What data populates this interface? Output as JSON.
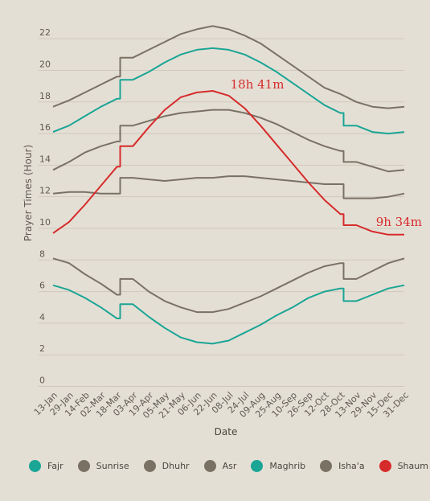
{
  "chart_data": {
    "type": "line",
    "title": "",
    "xlabel": "Date",
    "ylabel": "Prayer Times (Hour)",
    "ylim": [
      0,
      23
    ],
    "yticks": [
      0,
      2,
      4,
      6,
      8,
      10,
      12,
      14,
      16,
      18,
      20,
      22
    ],
    "x": [
      "13-Jan",
      "29-Jan",
      "14-Feb",
      "02-Mar",
      "18-Mar",
      "03-Apr",
      "19-Apr",
      "05-May",
      "21-May",
      "06-Jun",
      "22-Jun",
      "08-Jul",
      "24-Jul",
      "09-Aug",
      "25-Aug",
      "10-Sep",
      "26-Sep",
      "12-Oct",
      "28-Oct",
      "13-Nov",
      "29-Nov",
      "15-Dec",
      "31-Dec"
    ],
    "series": [
      {
        "name": "Fajr",
        "color": "#1aa595",
        "values": [
          6.4,
          6.1,
          5.6,
          5.0,
          4.3,
          5.2,
          4.4,
          3.7,
          3.1,
          2.8,
          2.7,
          2.9,
          3.4,
          3.9,
          4.5,
          5.0,
          5.6,
          6.0,
          6.2,
          5.4,
          5.8,
          6.2,
          6.4
        ]
      },
      {
        "name": "Sunrise",
        "color": "#7a7165",
        "values": [
          8.1,
          7.8,
          7.1,
          6.5,
          5.8,
          6.8,
          6.0,
          5.4,
          5.0,
          4.7,
          4.7,
          4.9,
          5.3,
          5.7,
          6.2,
          6.7,
          7.2,
          7.6,
          7.8,
          6.8,
          7.3,
          7.8,
          8.1
        ]
      },
      {
        "name": "Dhuhr",
        "color": "#7a7165",
        "values": [
          12.2,
          12.3,
          12.3,
          12.2,
          12.2,
          13.2,
          13.1,
          13.0,
          13.1,
          13.2,
          13.2,
          13.3,
          13.3,
          13.2,
          13.1,
          13.0,
          12.9,
          12.8,
          12.8,
          11.9,
          11.9,
          12.0,
          12.2
        ]
      },
      {
        "name": "Asr",
        "color": "#7a7165",
        "values": [
          13.7,
          14.2,
          14.8,
          15.2,
          15.5,
          16.5,
          16.8,
          17.1,
          17.3,
          17.4,
          17.5,
          17.5,
          17.3,
          17.0,
          16.6,
          16.1,
          15.6,
          15.2,
          14.9,
          14.2,
          13.9,
          13.6,
          13.7
        ]
      },
      {
        "name": "Maghrib",
        "color": "#1aa595",
        "values": [
          16.1,
          16.5,
          17.1,
          17.7,
          18.2,
          19.4,
          19.9,
          20.5,
          21.0,
          21.3,
          21.4,
          21.3,
          21.0,
          20.5,
          19.9,
          19.2,
          18.5,
          17.8,
          17.3,
          16.5,
          16.1,
          16.0,
          16.1
        ]
      },
      {
        "name": "Isha'a",
        "color": "#7a7165",
        "values": [
          17.7,
          18.1,
          18.6,
          19.1,
          19.6,
          20.8,
          21.3,
          21.8,
          22.3,
          22.6,
          22.8,
          22.6,
          22.2,
          21.7,
          21.0,
          20.3,
          19.6,
          18.9,
          18.5,
          18.0,
          17.7,
          17.6,
          17.7
        ]
      },
      {
        "name": "Shaum",
        "color": "#d62b2b",
        "values": [
          9.7,
          10.4,
          11.5,
          12.7,
          13.9,
          15.2,
          16.4,
          17.5,
          18.3,
          18.6,
          18.7,
          18.4,
          17.6,
          16.5,
          15.3,
          14.1,
          12.9,
          11.8,
          10.9,
          10.2,
          9.8,
          9.6,
          9.6
        ]
      }
    ],
    "annotations": [
      {
        "text": "18h 41m",
        "x": "22-Jun",
        "y": 18.7
      },
      {
        "text": "9h 34m",
        "x": "31-Dec",
        "y": 9.6
      }
    ],
    "grid": true,
    "legend": "bottom"
  }
}
